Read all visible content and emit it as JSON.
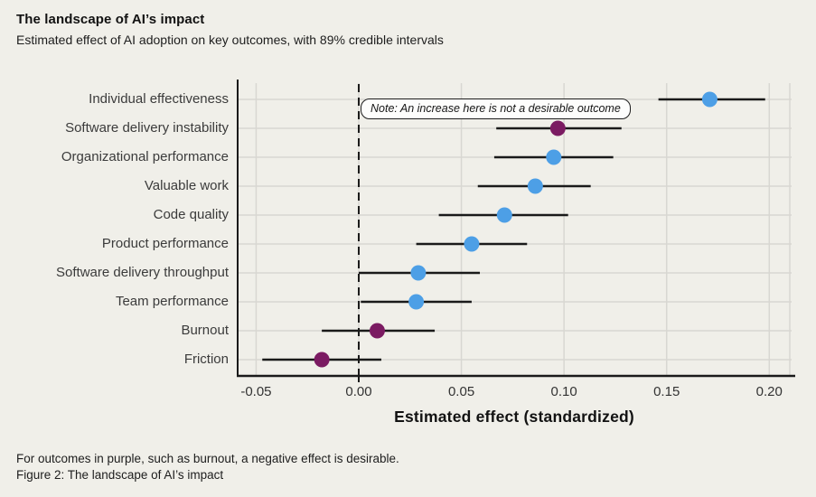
{
  "header": {
    "title": "The landscape of AI’s impact",
    "subtitle": "Estimated effect of AI adoption on key outcomes, with 89% credible intervals"
  },
  "note": {
    "text": "Note: An increase here is not a desirable outcome"
  },
  "footer": {
    "line1": "For outcomes in purple, such as burnout, a negative effect is desirable.",
    "line2": "Figure 2: The landscape of AI’s impact"
  },
  "colors": {
    "background": "#F0EFE9",
    "blue": "#4D9FE6",
    "purple": "#7B1B62",
    "grid": "#D8D7D2",
    "axis": "#1A1A1A",
    "interval": "#1A1A1A",
    "label": "#3B3B3B"
  },
  "chart_data": {
    "type": "scatter",
    "subtype": "dot-with-credible-interval",
    "title": "The landscape of AI’s impact",
    "xlabel": "Estimated effect (standardized)",
    "ylabel": "",
    "xlim": [
      -0.059,
      0.21
    ],
    "xticks": [
      -0.05,
      0,
      0.05,
      0.1,
      0.15,
      0.2
    ],
    "xtick_labels": [
      "-0.05",
      "0.00",
      "0.05",
      "0.10",
      "0.15",
      "0.20"
    ],
    "zero_reference_line": {
      "x": 0,
      "style": "dashed"
    },
    "interval_level": "89% credible interval",
    "grid": "on",
    "points": [
      {
        "label": "Individual effectiveness",
        "estimate": 0.171,
        "ci_low": 0.146,
        "ci_high": 0.198,
        "color_key": "blue"
      },
      {
        "label": "Software delivery instability",
        "estimate": 0.097,
        "ci_low": 0.067,
        "ci_high": 0.128,
        "color_key": "purple"
      },
      {
        "label": "Organizational performance",
        "estimate": 0.095,
        "ci_low": 0.066,
        "ci_high": 0.124,
        "color_key": "blue"
      },
      {
        "label": "Valuable work",
        "estimate": 0.086,
        "ci_low": 0.058,
        "ci_high": 0.113,
        "color_key": "blue"
      },
      {
        "label": "Code quality",
        "estimate": 0.071,
        "ci_low": 0.039,
        "ci_high": 0.102,
        "color_key": "blue"
      },
      {
        "label": "Product performance",
        "estimate": 0.055,
        "ci_low": 0.028,
        "ci_high": 0.082,
        "color_key": "blue"
      },
      {
        "label": "Software delivery throughput",
        "estimate": 0.029,
        "ci_low": 0.0,
        "ci_high": 0.059,
        "color_key": "blue"
      },
      {
        "label": "Team performance",
        "estimate": 0.028,
        "ci_low": 0.001,
        "ci_high": 0.055,
        "color_key": "blue"
      },
      {
        "label": "Burnout",
        "estimate": 0.009,
        "ci_low": -0.018,
        "ci_high": 0.037,
        "color_key": "purple"
      },
      {
        "label": "Friction",
        "estimate": -0.018,
        "ci_low": -0.047,
        "ci_high": 0.011,
        "color_key": "purple"
      }
    ]
  }
}
